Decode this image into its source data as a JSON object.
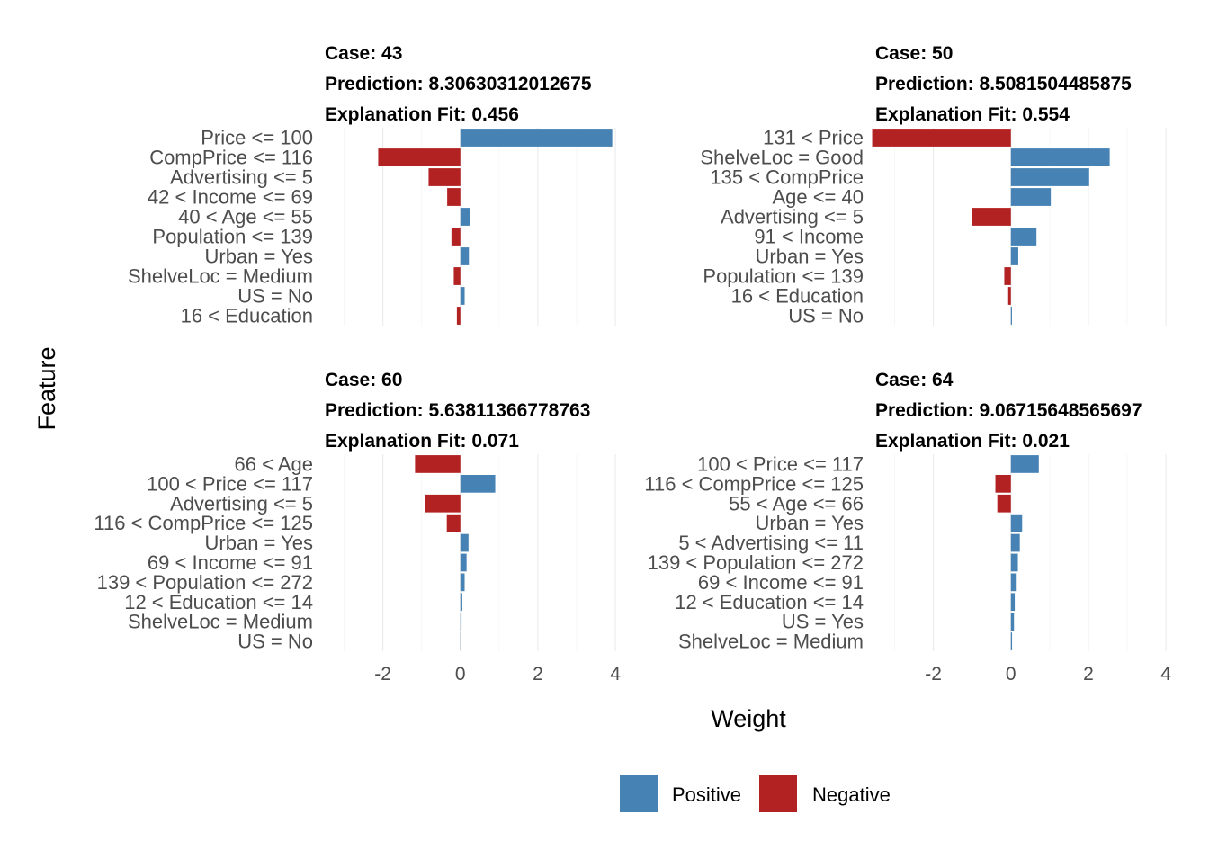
{
  "chart_data": {
    "type": "bar",
    "orientation": "horizontal",
    "xlabel": "Weight",
    "ylabel": "Feature",
    "xlim": [
      -3.5,
      4.3
    ],
    "xticks": [
      -2,
      0,
      2,
      4
    ],
    "grid": true,
    "legend": {
      "position": "bottom",
      "entries": [
        {
          "label": "Positive",
          "color": "#4682B4"
        },
        {
          "label": "Negative",
          "color": "#B22222"
        }
      ]
    },
    "panels": [
      {
        "case": "Case: 43",
        "prediction": "Prediction: 8.30630312012675",
        "fit": "Explanation Fit: 0.456",
        "features": [
          "Price <= 100",
          "CompPrice <= 116",
          "Advertising <= 5",
          "42 < Income <= 69",
          "40 < Age <= 55",
          "Population <= 139",
          "Urban = Yes",
          "ShelveLoc = Medium",
          "US = No",
          "16 < Education"
        ],
        "weights": [
          3.92,
          -2.12,
          -0.82,
          -0.34,
          0.26,
          -0.23,
          0.22,
          -0.17,
          0.11,
          -0.09
        ]
      },
      {
        "case": "Case: 50",
        "prediction": "Prediction: 8.5081504485875",
        "fit": "Explanation Fit: 0.554",
        "features": [
          "131 < Price",
          "ShelveLoc = Good",
          "135 < CompPrice",
          "Age <= 40",
          "Advertising <= 5",
          "91 < Income",
          "Urban = Yes",
          "Population <= 139",
          "16 < Education",
          "US = No"
        ],
        "weights": [
          -3.58,
          2.55,
          2.02,
          1.03,
          -1.0,
          0.66,
          0.19,
          -0.17,
          -0.07,
          0.0
        ]
      },
      {
        "case": "Case: 60",
        "prediction": "Prediction: 5.63811366778763",
        "fit": "Explanation Fit: 0.071",
        "features": [
          "66 < Age",
          "100 < Price <= 117",
          "Advertising <= 5",
          "116 < CompPrice <= 125",
          "Urban = Yes",
          "69 < Income <= 91",
          "139 < Population <= 272",
          "12 < Education <= 14",
          "ShelveLoc = Medium",
          "US = No"
        ],
        "weights": [
          -1.17,
          0.9,
          -0.91,
          -0.35,
          0.21,
          0.16,
          0.11,
          0.05,
          0.03,
          0.02
        ]
      },
      {
        "case": "Case: 64",
        "prediction": "Prediction: 9.06715648565697",
        "fit": "Explanation Fit: 0.021",
        "features": [
          "100 < Price <= 117",
          "116 < CompPrice <= 125",
          "55 < Age <= 66",
          "Urban = Yes",
          "5 < Advertising <= 11",
          "139 < Population <= 272",
          "69 < Income <= 91",
          "12 < Education <= 14",
          "US = Yes",
          "ShelveLoc = Medium"
        ],
        "weights": [
          0.72,
          -0.4,
          -0.35,
          0.29,
          0.23,
          0.18,
          0.15,
          0.1,
          0.08,
          0.03
        ]
      }
    ]
  }
}
